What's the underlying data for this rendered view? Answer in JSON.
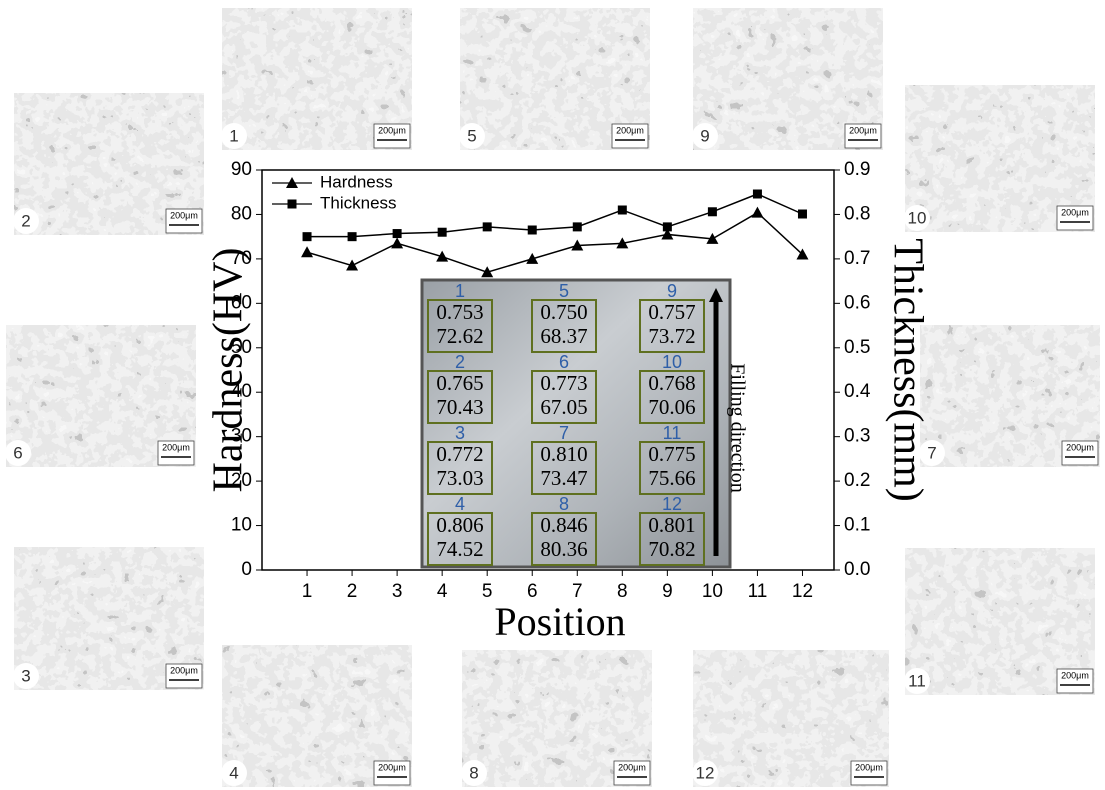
{
  "chart_data": {
    "type": "line",
    "x_label": "Position",
    "y_label": "Hardness(HV)",
    "y2_label": "Thickness(mm)",
    "x": [
      1,
      2,
      3,
      4,
      5,
      6,
      7,
      8,
      9,
      10,
      11,
      12
    ],
    "xlim": [
      0,
      12.7
    ],
    "xticks": [
      1,
      2,
      3,
      4,
      5,
      6,
      7,
      8,
      9,
      10,
      11,
      12
    ],
    "ylim": [
      0,
      90
    ],
    "yticks": [
      0,
      10,
      20,
      30,
      40,
      50,
      60,
      70,
      80,
      90
    ],
    "y2lim": [
      0,
      0.9
    ],
    "y2ticks": [
      {
        "value": 0,
        "label": "0.0"
      },
      0.1,
      0.2,
      0.3,
      0.4,
      0.5,
      0.6,
      0.7,
      0.8,
      0.9
    ],
    "legend": "upper left",
    "series": [
      {
        "name": "Hardness",
        "color": "#000000",
        "marker": "triangle",
        "values": [
          71.5,
          68.5,
          73.5,
          70.5,
          67,
          70,
          73,
          73.5,
          75.5,
          74.5,
          80.4,
          71
        ]
      },
      {
        "name": "Thickness",
        "color": "#000000",
        "marker": "square",
        "axis": "y2",
        "values": [
          0.75,
          0.75,
          0.757,
          0.76,
          0.772,
          0.765,
          0.772,
          0.81,
          0.772,
          0.806,
          0.846,
          0.801
        ]
      }
    ]
  },
  "inset": {
    "annotation": "Filling direction",
    "cells": [
      {
        "label": "1",
        "thickness": "0.753",
        "hardness": "72.62"
      },
      {
        "label": "5",
        "thickness": "0.750",
        "hardness": "68.37"
      },
      {
        "label": "9",
        "thickness": "0.757",
        "hardness": "73.72"
      },
      {
        "label": "2",
        "thickness": "0.765",
        "hardness": "70.43"
      },
      {
        "label": "6",
        "thickness": "0.773",
        "hardness": "67.05"
      },
      {
        "label": "10",
        "thickness": "0.768",
        "hardness": "70.06"
      },
      {
        "label": "3",
        "thickness": "0.772",
        "hardness": "73.03"
      },
      {
        "label": "7",
        "thickness": "0.810",
        "hardness": "73.47"
      },
      {
        "label": "11",
        "thickness": "0.775",
        "hardness": "75.66"
      },
      {
        "label": "4",
        "thickness": "0.806",
        "hardness": "74.52"
      },
      {
        "label": "8",
        "thickness": "0.846",
        "hardness": "80.36"
      },
      {
        "label": "12",
        "thickness": "0.801",
        "hardness": "70.82"
      }
    ]
  },
  "micrographs": [
    {
      "label": "1",
      "scale": "200μm"
    },
    {
      "label": "2",
      "scale": "200μm"
    },
    {
      "label": "3",
      "scale": "200μm"
    },
    {
      "label": "4",
      "scale": "200μm"
    },
    {
      "label": "5",
      "scale": "200μm"
    },
    {
      "label": "6",
      "scale": "200μm"
    },
    {
      "label": "7",
      "scale": "200μm"
    },
    {
      "label": "8",
      "scale": "200μm"
    },
    {
      "label": "9",
      "scale": "200μm"
    },
    {
      "label": "10",
      "scale": "200μm"
    },
    {
      "label": "11",
      "scale": "200μm"
    },
    {
      "label": "12",
      "scale": "200μm"
    }
  ]
}
